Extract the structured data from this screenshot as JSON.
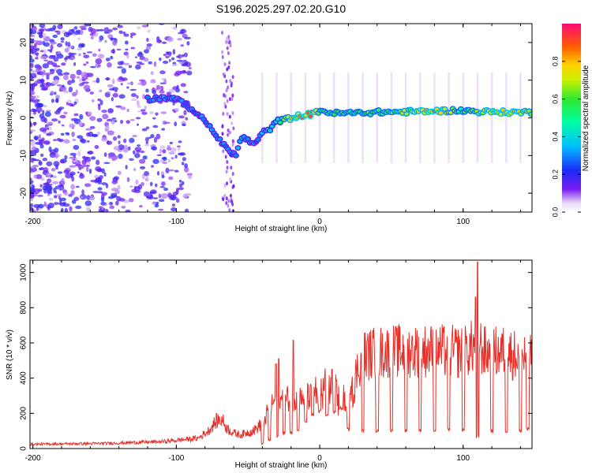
{
  "title": "S196.2025.297.02.20.G10",
  "colorbar": {
    "label": "Normalized spectral amplitude",
    "ticks": [
      "0.0",
      "0.2",
      "0.4",
      "0.6",
      "0.8"
    ],
    "tick_values": [
      0.0,
      0.2,
      0.4,
      0.6,
      0.8
    ]
  },
  "chart_data": [
    {
      "type": "heatmap",
      "title": "S196.2025.297.02.20.G10",
      "xlabel": "Height of straight line (km)",
      "ylabel": "Frequency (Hz)",
      "xlim": [
        -202,
        148
      ],
      "ylim": [
        -25,
        25
      ],
      "x_ticks": [
        -200,
        -100,
        0,
        100
      ],
      "x_tick_labels": [
        "-200",
        "-100",
        "0",
        "100"
      ],
      "y_ticks": [
        20,
        10,
        0,
        -10,
        -20
      ],
      "y_tick_labels": [
        "20",
        "10",
        "0",
        "-10",
        "-20"
      ],
      "colorbar_range": [
        0,
        1
      ],
      "ridge": {
        "name": "Doppler frequency ridge",
        "x": [
          -120,
          -105,
          -95,
          -85,
          -75,
          -68,
          -62,
          -58,
          -55,
          -50,
          -45,
          -40,
          -35,
          -30,
          -25,
          -20,
          -15,
          -10,
          -5,
          0,
          10,
          25,
          40,
          60,
          80,
          95,
          105,
          115,
          130,
          148
        ],
        "y": [
          5,
          5.5,
          4,
          1,
          -3,
          -7,
          -9,
          -10,
          -5,
          -6,
          -7,
          -4,
          -3,
          -1,
          -0.5,
          0,
          0.5,
          0.8,
          1,
          2,
          1.2,
          1.3,
          1.5,
          1.6,
          1.8,
          2,
          1.8,
          1.6,
          1.5,
          1.5
        ],
        "amplitude": [
          0.3,
          0.35,
          0.3,
          0.3,
          0.35,
          0.35,
          0.3,
          0.3,
          0.4,
          0.35,
          0.3,
          0.35,
          0.4,
          0.45,
          0.6,
          0.75,
          0.8,
          0.85,
          0.9,
          0.6,
          0.6,
          0.6,
          0.6,
          0.7,
          0.85,
          0.6,
          0.6,
          0.75,
          0.8,
          0.7
        ]
      }
    },
    {
      "type": "line",
      "title": "",
      "xlabel": "Height of straight line (km)",
      "ylabel": "SNR (10 * v/v)",
      "xlim": [
        -202,
        148
      ],
      "ylim": [
        0,
        1070
      ],
      "x_ticks": [
        -200,
        -100,
        0,
        100
      ],
      "x_tick_labels": [
        "-200",
        "-100",
        "0",
        "100"
      ],
      "y_ticks": [
        0,
        200,
        400,
        600,
        800,
        1000
      ],
      "y_tick_labels": [
        "0",
        "200",
        "400",
        "600",
        "800",
        "1000"
      ],
      "series": [
        {
          "name": "SNR",
          "color": "#e8302a",
          "envelope_x": [
            -202,
            -150,
            -110,
            -85,
            -78,
            -72,
            -68,
            -65,
            -60,
            -55,
            -45,
            -40,
            -35,
            -30,
            -25,
            -20,
            -15,
            -10,
            -5,
            0,
            5,
            10,
            15,
            20,
            25,
            30,
            40,
            60,
            80,
            100,
            105,
            110,
            115,
            130,
            148
          ],
          "envelope_y": [
            25,
            30,
            40,
            60,
            100,
            160,
            170,
            120,
            90,
            80,
            110,
            150,
            230,
            300,
            260,
            320,
            280,
            300,
            300,
            350,
            390,
            320,
            280,
            300,
            430,
            540,
            560,
            570,
            570,
            560,
            580,
            620,
            560,
            560,
            520
          ],
          "spikes": [
            {
              "x": -30.5,
              "y": 480
            },
            {
              "x": -28.5,
              "y": 510
            },
            {
              "x": -18.5,
              "y": 615
            },
            {
              "x": 8.5,
              "y": 450
            },
            {
              "x": 108.5,
              "y": 860
            },
            {
              "x": 110,
              "y": 1060
            }
          ],
          "dropout_x": [
            -40,
            -35,
            -30,
            -25,
            -20,
            -15,
            -10,
            -5,
            0,
            5,
            10,
            15,
            20,
            30,
            40,
            50,
            60,
            70,
            80,
            90,
            100,
            110,
            120,
            130,
            140,
            145
          ],
          "dropout_depth": [
            20,
            40,
            60,
            80,
            80,
            100,
            140,
            180,
            200,
            180,
            200,
            220,
            100,
            90,
            90,
            90,
            90,
            95,
            95,
            95,
            95,
            60,
            90,
            90,
            90,
            100
          ]
        }
      ]
    }
  ]
}
